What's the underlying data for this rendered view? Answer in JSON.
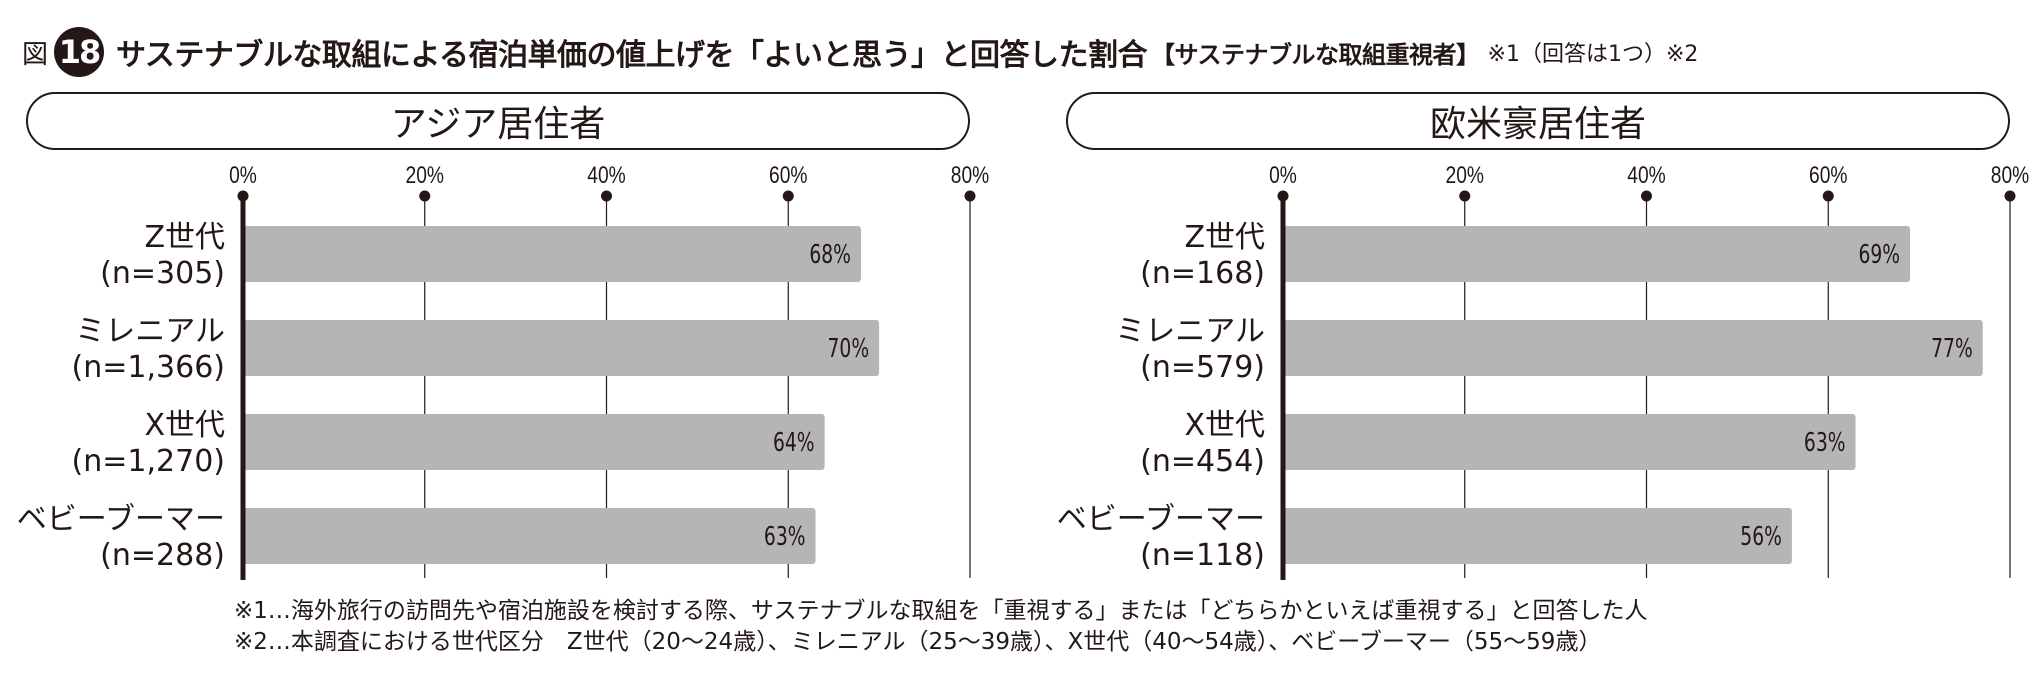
{
  "header": {
    "fig_label": "図",
    "fig_number": "18",
    "title": "サステナブルな取組による宿泊単価の値上げを「よいと思う」と回答した割合",
    "title_bracket": "【サステナブルな取組重視者】",
    "title_note": "※1（回答は1つ）※2"
  },
  "chart_data": [
    {
      "type": "bar",
      "orientation": "horizontal",
      "title": "アジア居住者",
      "categories": [
        "Z世代",
        "ミレニアル",
        "X世代",
        "ベビーブーマー"
      ],
      "sample_sizes": [
        "(n=305)",
        "(n=1,366)",
        "(n=1,270)",
        "(n=288)"
      ],
      "values": [
        68,
        70,
        64,
        63
      ],
      "value_labels": [
        "68%",
        "70%",
        "64%",
        "63%"
      ],
      "xlim": [
        0,
        80
      ],
      "ticks": [
        0,
        20,
        40,
        60,
        80
      ],
      "tick_labels": [
        "0%",
        "20%",
        "40%",
        "60%",
        "80%"
      ],
      "grid": true,
      "bar_color": "#b5b5b6"
    },
    {
      "type": "bar",
      "orientation": "horizontal",
      "title": "欧米豪居住者",
      "categories": [
        "Z世代",
        "ミレニアル",
        "X世代",
        "ベビーブーマー"
      ],
      "sample_sizes": [
        "(n=168)",
        "(n=579)",
        "(n=454)",
        "(n=118)"
      ],
      "values": [
        69,
        77,
        63,
        56
      ],
      "value_labels": [
        "69%",
        "77%",
        "63%",
        "56%"
      ],
      "xlim": [
        0,
        80
      ],
      "ticks": [
        0,
        20,
        40,
        60,
        80
      ],
      "tick_labels": [
        "0%",
        "20%",
        "40%",
        "60%",
        "80%"
      ],
      "grid": true,
      "bar_color": "#b5b5b6"
    }
  ],
  "footnotes": [
    "※1…海外旅行の訪問先や宿泊施設を検討する際、サステナブルな取組を「重視する」または「どちらかといえば重視する」と回答した人",
    "※2…本調査における世代区分　Z世代（20〜24歳）、ミレニアル（25〜39歳）、X世代（40〜54歳）、ベビーブーマー（55〜59歳）"
  ],
  "colors": {
    "ink": "#231815",
    "bar": "#b5b5b6",
    "grid": "#231815"
  }
}
